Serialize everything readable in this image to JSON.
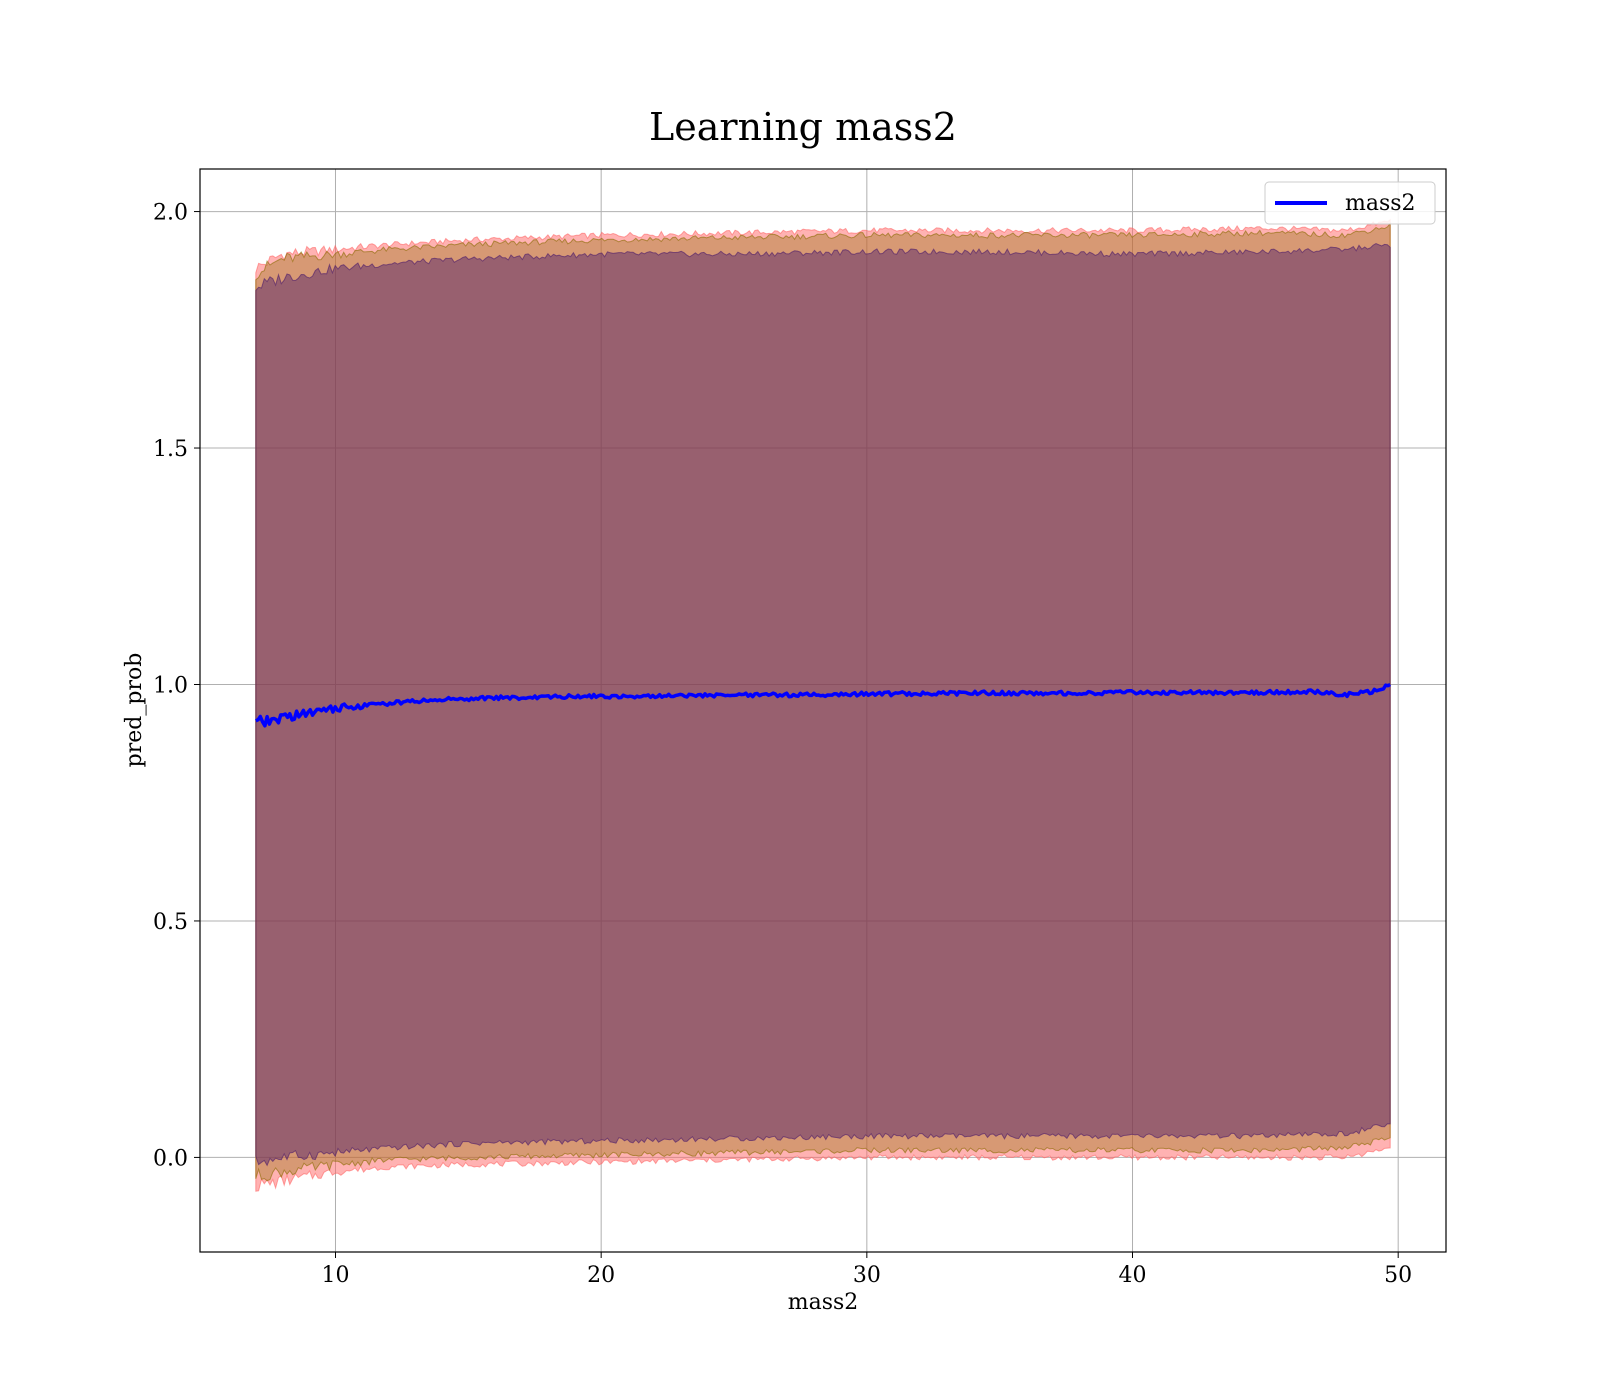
{
  "chart_data": {
    "type": "line",
    "title": "Learning mass2",
    "xlabel": "mass2",
    "ylabel": "pred_prob",
    "xlim": [
      4.9,
      51.8
    ],
    "ylim": [
      -0.2,
      2.09
    ],
    "xticks": [
      10,
      20,
      30,
      40,
      50
    ],
    "yticks": [
      0.0,
      0.5,
      1.0,
      1.5,
      2.0
    ],
    "xtick_labels": [
      "10",
      "20",
      "30",
      "40",
      50
    ],
    "ytick_labels": [
      "0.0",
      "0.5",
      "1.0",
      "1.5",
      "2.0"
    ],
    "grid": true,
    "legend": {
      "placement": "top-right",
      "entries": [
        "mass2"
      ]
    },
    "series": [
      {
        "name": "mass2",
        "color": "#0000ff",
        "x": [
          7.0,
          7.5,
          8.0,
          9.0,
          10.0,
          11.0,
          12.0,
          13.0,
          14.0,
          15.0,
          16.0,
          17.0,
          18.0,
          19.0,
          20.0,
          22.0,
          24.0,
          26.0,
          28.0,
          30.0,
          32.0,
          34.0,
          36.0,
          38.0,
          40.0,
          42.0,
          44.0,
          46.0,
          47.0,
          48.0,
          49.0,
          49.7
        ],
        "y": [
          0.92,
          0.92,
          0.93,
          0.94,
          0.95,
          0.955,
          0.96,
          0.965,
          0.968,
          0.97,
          0.972,
          0.972,
          0.973,
          0.975,
          0.975,
          0.976,
          0.977,
          0.978,
          0.978,
          0.98,
          0.981,
          0.982,
          0.982,
          0.982,
          0.983,
          0.983,
          0.983,
          0.984,
          0.985,
          0.978,
          0.985,
          1.0
        ]
      }
    ],
    "bands": [
      {
        "color": "#ff6666",
        "opacity": 0.5,
        "x": [
          7.0,
          8.0,
          10.0,
          12.0,
          15.0,
          20.0,
          25.0,
          30.0,
          35.0,
          40.0,
          45.0,
          48.0,
          49.7
        ],
        "upper": [
          1.88,
          1.91,
          1.92,
          1.93,
          1.94,
          1.95,
          1.955,
          1.96,
          1.96,
          1.96,
          1.965,
          1.96,
          1.98
        ],
        "lower": [
          -0.06,
          -0.05,
          -0.03,
          -0.02,
          -0.015,
          -0.01,
          -0.005,
          0.0,
          0.0,
          0.0,
          0.0,
          0.0,
          0.02
        ]
      },
      {
        "color": "#8b6b00",
        "opacity": 0.35,
        "x": [
          7.0,
          8.0,
          10.0,
          12.0,
          15.0,
          20.0,
          25.0,
          30.0,
          35.0,
          40.0,
          45.0,
          48.0,
          49.7
        ],
        "upper": [
          1.87,
          1.9,
          1.91,
          1.92,
          1.93,
          1.94,
          1.945,
          1.95,
          1.95,
          1.95,
          1.955,
          1.95,
          1.97
        ],
        "lower": [
          -0.04,
          -0.03,
          -0.015,
          -0.005,
          0.0,
          0.005,
          0.01,
          0.015,
          0.015,
          0.015,
          0.015,
          0.02,
          0.04
        ]
      },
      {
        "color": "#4b1a6b",
        "opacity": 0.45,
        "x": [
          7.0,
          8.0,
          10.0,
          12.0,
          15.0,
          20.0,
          25.0,
          30.0,
          35.0,
          40.0,
          45.0,
          48.0,
          49.7
        ],
        "upper": [
          1.84,
          1.86,
          1.88,
          1.89,
          1.9,
          1.91,
          1.91,
          1.915,
          1.915,
          1.91,
          1.915,
          1.92,
          1.93
        ],
        "lower": [
          -0.01,
          0.0,
          0.01,
          0.02,
          0.03,
          0.035,
          0.04,
          0.045,
          0.045,
          0.045,
          0.045,
          0.05,
          0.07
        ]
      }
    ]
  }
}
